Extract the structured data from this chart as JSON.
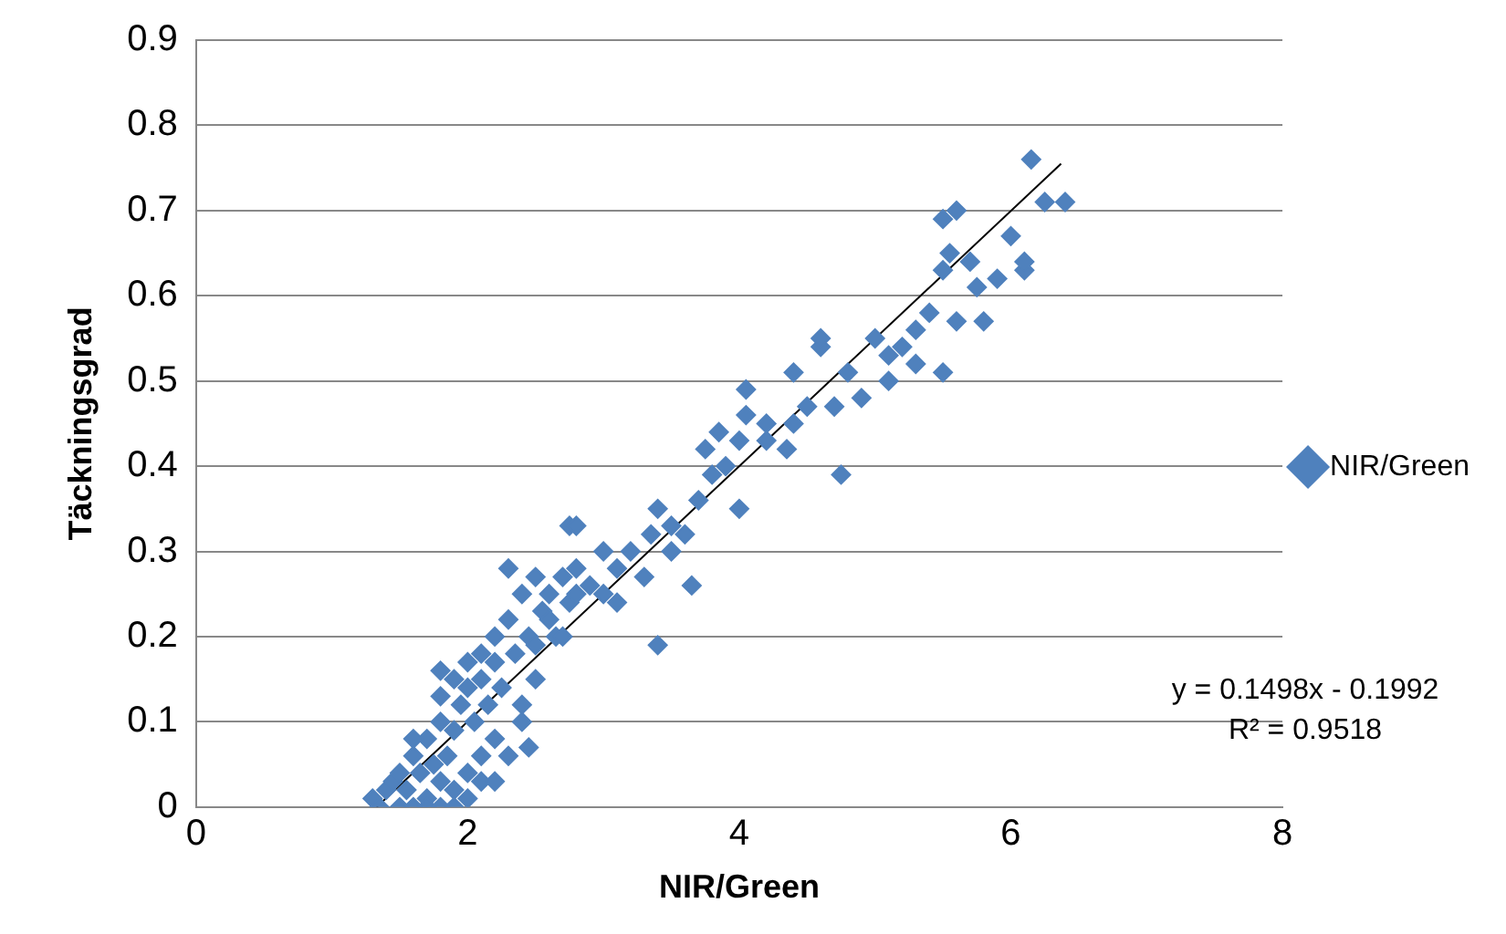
{
  "chart_data": {
    "type": "scatter",
    "xlabel": "NIR/Green",
    "ylabel": "Täckningsgrad",
    "xlim": [
      0,
      8
    ],
    "xticks": [
      0,
      2,
      4,
      6,
      8
    ],
    "ylim": [
      0,
      0.9
    ],
    "yticks": [
      0,
      0.1,
      0.2,
      0.3,
      0.4,
      0.5,
      0.6,
      0.7,
      0.8,
      0.9
    ],
    "grid": "y",
    "legend": "right",
    "marker": "diamond",
    "series": [
      {
        "name": "NIR/Green",
        "color": "#4f81bd",
        "x": [
          1.3,
          1.35,
          1.4,
          1.45,
          1.5,
          1.5,
          1.55,
          1.6,
          1.6,
          1.65,
          1.7,
          1.7,
          1.75,
          1.8,
          1.8,
          1.85,
          1.9,
          1.9,
          1.95,
          2.0,
          2.0,
          2.05,
          2.1,
          2.1,
          2.15,
          2.2,
          2.2,
          1.6,
          1.7,
          1.8,
          1.9,
          2.0,
          2.1,
          1.8,
          1.9,
          2.0,
          2.1,
          2.2,
          2.25,
          2.3,
          2.35,
          2.4,
          2.4,
          2.45,
          2.5,
          2.5,
          2.55,
          2.6,
          2.65,
          2.7,
          2.75,
          2.8,
          2.2,
          2.3,
          2.4,
          2.5,
          2.6,
          2.7,
          2.8,
          2.9,
          3.0,
          3.0,
          3.1,
          3.1,
          3.2,
          3.3,
          3.35,
          3.4,
          3.5,
          3.5,
          3.6,
          3.7,
          3.75,
          3.8,
          3.9,
          4.0,
          4.0,
          4.05,
          3.4,
          2.75,
          2.8,
          1.8,
          2.3,
          2.45,
          3.65,
          3.85,
          4.05,
          4.2,
          4.35,
          4.4,
          4.5,
          4.6,
          4.7,
          4.75,
          4.8,
          4.9,
          5.0,
          5.1,
          5.2,
          5.3,
          5.4,
          5.5,
          5.5,
          5.55,
          5.6,
          5.7,
          5.75,
          5.8,
          5.9,
          6.0,
          6.1,
          6.15,
          6.25,
          6.4,
          6.1,
          5.6,
          5.5,
          5.3,
          4.6,
          4.2,
          4.4,
          5.1
        ],
        "values": [
          0.01,
          0.0,
          0.02,
          0.03,
          0.0,
          0.04,
          0.02,
          0.06,
          0.0,
          0.04,
          0.08,
          0.01,
          0.05,
          0.03,
          0.1,
          0.06,
          0.0,
          0.09,
          0.12,
          0.04,
          0.14,
          0.1,
          0.06,
          0.15,
          0.12,
          0.08,
          0.17,
          0.08,
          0.0,
          0.0,
          0.02,
          0.01,
          0.03,
          0.13,
          0.15,
          0.17,
          0.18,
          0.2,
          0.14,
          0.22,
          0.18,
          0.25,
          0.1,
          0.2,
          0.27,
          0.19,
          0.23,
          0.25,
          0.2,
          0.27,
          0.24,
          0.25,
          0.03,
          0.06,
          0.12,
          0.15,
          0.22,
          0.2,
          0.28,
          0.26,
          0.3,
          0.25,
          0.28,
          0.24,
          0.3,
          0.27,
          0.32,
          0.35,
          0.3,
          0.33,
          0.32,
          0.36,
          0.42,
          0.39,
          0.4,
          0.43,
          0.35,
          0.46,
          0.19,
          0.33,
          0.33,
          0.16,
          0.28,
          0.07,
          0.26,
          0.44,
          0.49,
          0.45,
          0.42,
          0.51,
          0.47,
          0.54,
          0.47,
          0.39,
          0.51,
          0.48,
          0.55,
          0.5,
          0.54,
          0.56,
          0.58,
          0.63,
          0.51,
          0.65,
          0.57,
          0.64,
          0.61,
          0.57,
          0.62,
          0.67,
          0.63,
          0.76,
          0.71,
          0.71,
          0.64,
          0.7,
          0.69,
          0.52,
          0.55,
          0.43,
          0.45,
          0.53
        ]
      },
      {
        "type": "line",
        "color": "#000000",
        "marker": "none",
        "x": [
          1.33,
          6.37
        ],
        "values": [
          0.0,
          0.755
        ]
      }
    ],
    "annotations": [
      "y = 0.1498x - 0.1992",
      "R² = 0.9518"
    ]
  }
}
